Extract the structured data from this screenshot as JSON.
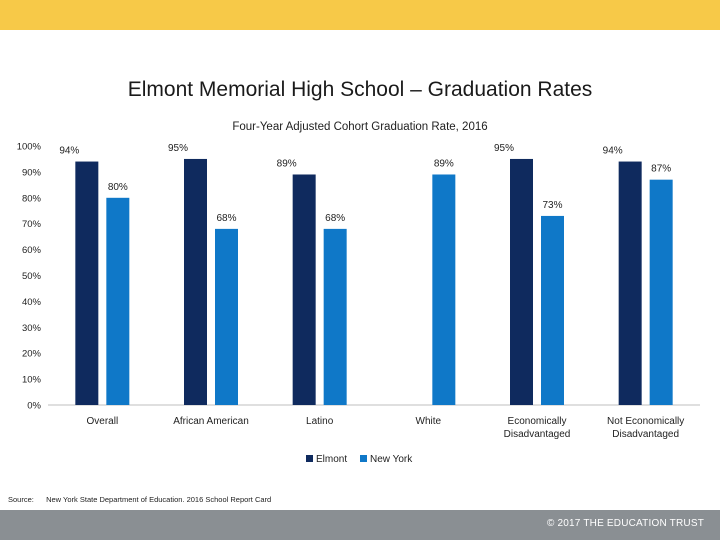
{
  "page": {
    "title": "Elmont Memorial High School – Graduation Rates",
    "source_label": "Source:",
    "source_text": "New York State Department of Education. 2016 School Report Card",
    "copyright": "© 2017 THE EDUCATION TRUST"
  },
  "colors": {
    "elmont": "#0f2a5e",
    "new_york": "#0f78c8",
    "top_band": "#f7c948",
    "bottom_band": "#8a8f93"
  },
  "chart_data": {
    "type": "bar",
    "title": "Four-Year Adjusted Cohort Graduation Rate, 2016",
    "categories": [
      [
        "Overall"
      ],
      [
        "African American"
      ],
      [
        "Latino"
      ],
      [
        "White"
      ],
      [
        "Economically",
        "Disadvantaged"
      ],
      [
        "Not Economically",
        "Disadvantaged"
      ]
    ],
    "series": [
      {
        "name": "Elmont",
        "values": [
          94,
          95,
          89,
          null,
          95,
          94
        ],
        "labels": [
          "94%",
          "95%",
          "89%",
          "",
          "95%",
          "94%"
        ],
        "color": "#0f2a5e"
      },
      {
        "name": "New York",
        "values": [
          80,
          68,
          68,
          89,
          73,
          87
        ],
        "labels": [
          "80%",
          "68%",
          "68%",
          "89%",
          "73%",
          "87%"
        ],
        "color": "#0f78c8"
      }
    ],
    "ylim": [
      0,
      100
    ],
    "yticks": [
      "0%",
      "10%",
      "20%",
      "30%",
      "40%",
      "50%",
      "60%",
      "70%",
      "80%",
      "90%",
      "100%"
    ],
    "grid": false,
    "legend": "bottom"
  }
}
